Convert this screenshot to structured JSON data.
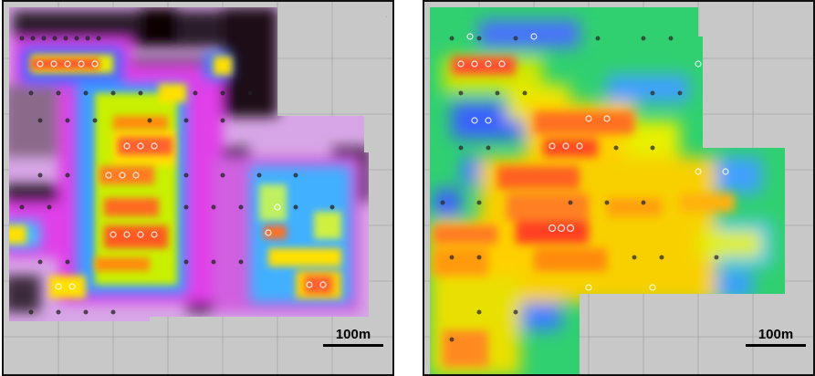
{
  "maps": [
    {
      "name": "left-survey-map",
      "scale_label": "100m",
      "palette": "black-magenta-blue-cyan-green-yellow-orange-red"
    },
    {
      "name": "right-survey-map",
      "scale_label": "100m",
      "palette": "blue-cyan-green-yellow-orange-red"
    }
  ]
}
